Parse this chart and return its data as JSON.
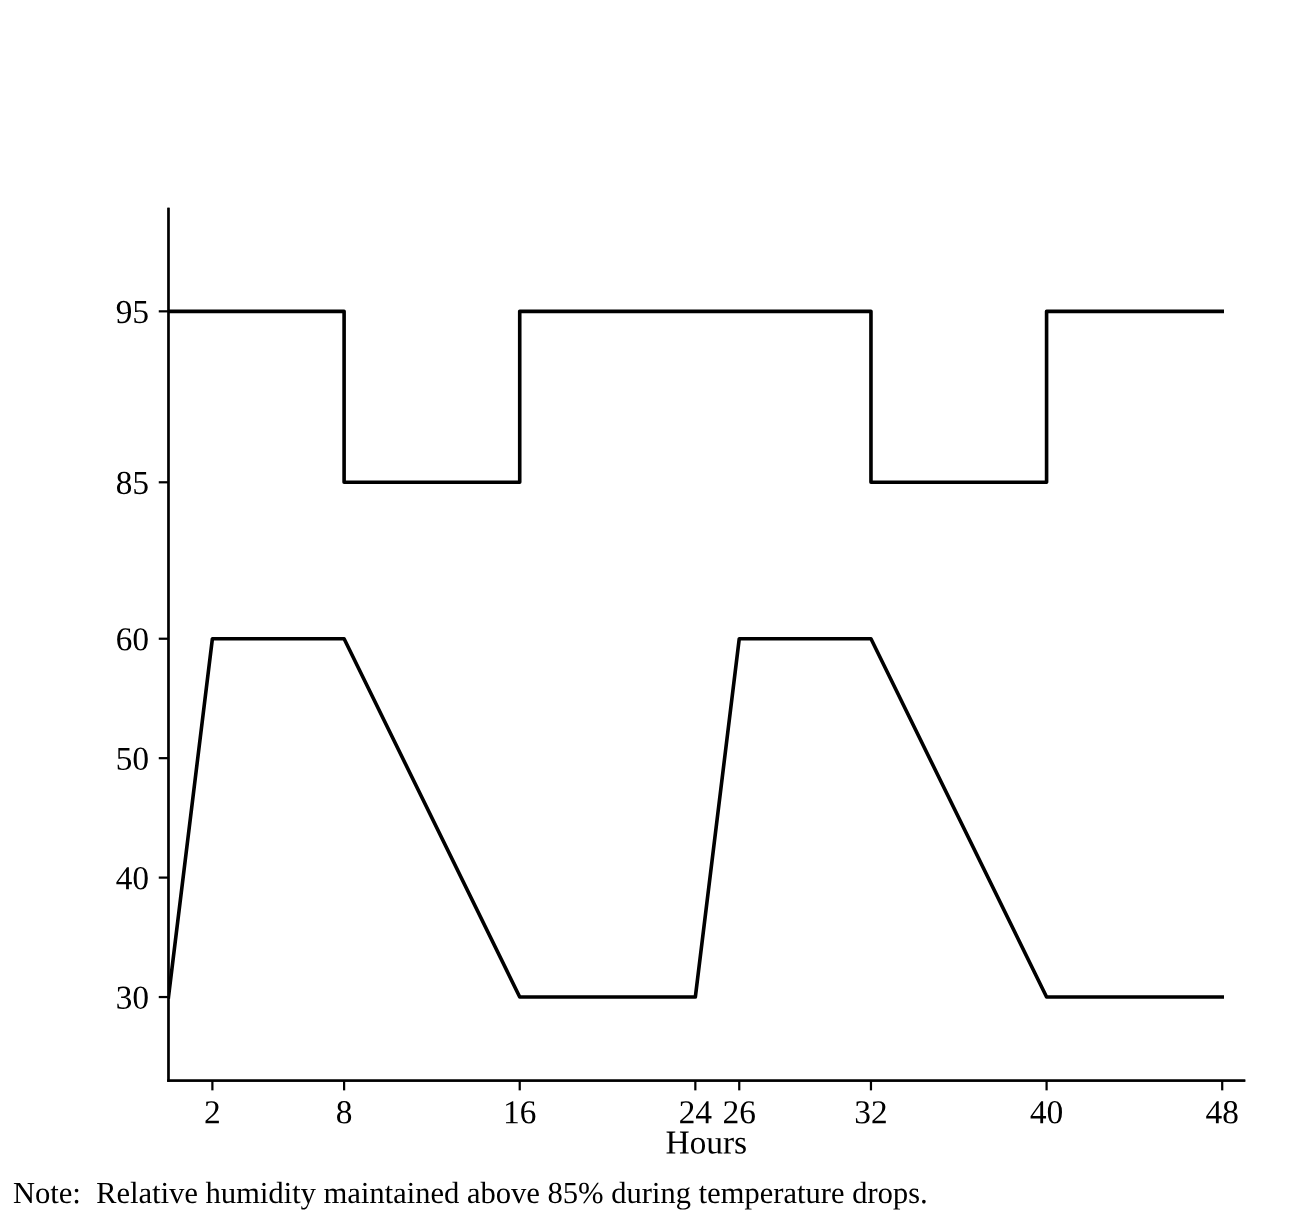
{
  "chart_data": {
    "type": "line",
    "xlabel": "Hours",
    "annotations": [
      "Note:  Relative humidity maintained above 85% during temperature drops."
    ],
    "series": [
      {
        "color": "#000000",
        "x": [
          0,
          2,
          8,
          16,
          24,
          26,
          32,
          40,
          48
        ],
        "values": [
          30,
          60,
          60,
          30,
          30,
          60,
          60,
          30,
          30
        ]
      },
      {
        "type": "step",
        "axis": "y2",
        "color": "#000000",
        "x": [
          0,
          8,
          16,
          32,
          40,
          48
        ],
        "values": [
          95,
          85,
          95,
          85,
          95,
          95
        ]
      }
    ],
    "xlim": [
      0,
      49
    ],
    "xticks": [
      2,
      8,
      16,
      24,
      26,
      32,
      40,
      48
    ],
    "ylim": [
      23,
      96
    ],
    "yticks": [
      30,
      40,
      50,
      60
    ],
    "y2lim": [
      50,
      101
    ],
    "y2ticks": [
      85,
      95
    ],
    "grid": false,
    "legend": false,
    "marker": "none",
    "line_style": "solid"
  }
}
